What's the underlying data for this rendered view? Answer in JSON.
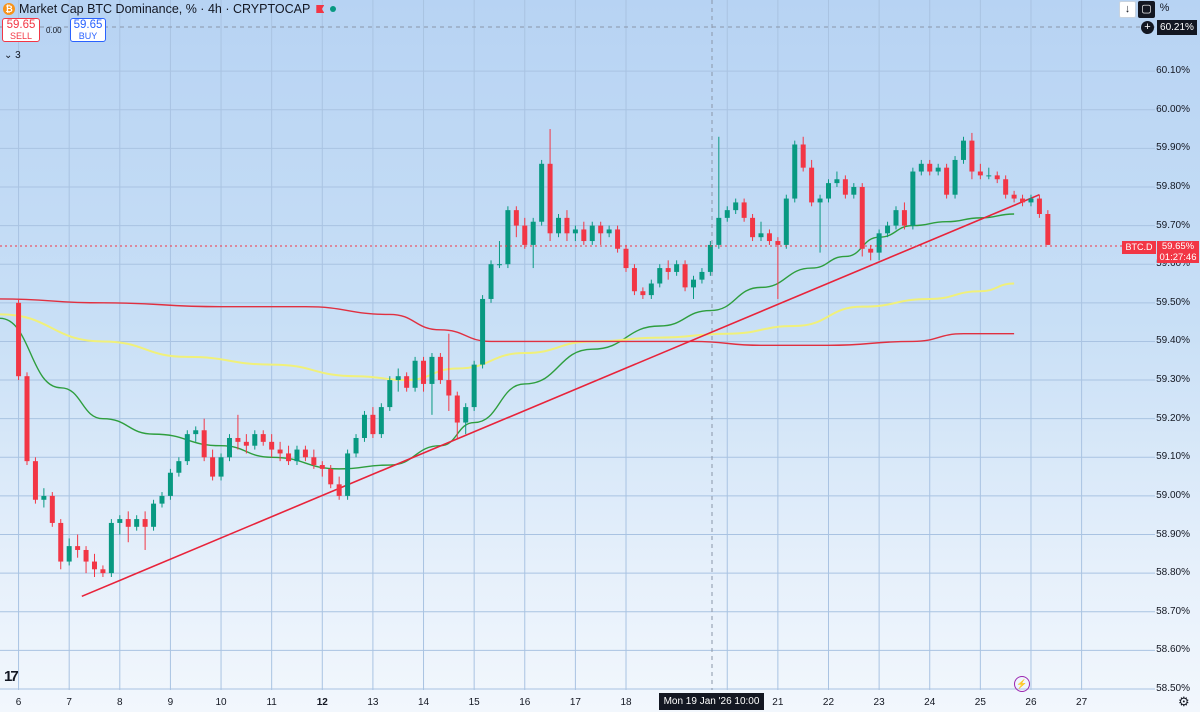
{
  "header": {
    "title": "Market Cap BTC Dominance, % · 4h · CRYPTOCAP",
    "sell_price": "59.65",
    "sell_label": "SELL",
    "buy_price": "59.65",
    "buy_label": "BUY",
    "spread": "0.00",
    "indicators_count": "3"
  },
  "toolbar": {
    "down_arrow": "↓",
    "square": "▢",
    "percent": "%"
  },
  "price_axis": {
    "labels": [
      "60.10%",
      "60.00%",
      "59.90%",
      "59.80%",
      "59.70%",
      "59.60%",
      "59.50%",
      "59.40%",
      "59.30%",
      "59.20%",
      "59.10%",
      "59.00%",
      "58.90%",
      "58.80%",
      "58.70%",
      "58.60%",
      "58.50%"
    ],
    "crosshair_price": "60.21%",
    "symbol_tag": "BTC.D",
    "current_price": "59.65%",
    "countdown": "01:27:46"
  },
  "time_axis": {
    "labels": [
      "6",
      "7",
      "8",
      "9",
      "10",
      "11",
      "12",
      "13",
      "14",
      "15",
      "16",
      "17",
      "18",
      "20",
      "21",
      "22",
      "23",
      "24",
      "25",
      "26",
      "27"
    ],
    "bold_labels": [
      "12"
    ],
    "crosshair_date": "Mon 19 Jan '26   10:00"
  },
  "colors": {
    "up": "#089981",
    "down": "#f23645",
    "ma_fast": "#2e9e3e",
    "ma_mid": "#f0f07a",
    "ma_slow": "#e03040",
    "trendline": "#e8233a"
  },
  "chart_data": {
    "type": "candlestick",
    "unit": "%",
    "ylim": [
      58.5,
      60.2
    ],
    "x_label_positions": {
      "6": 0,
      "7": 6,
      "8": 12,
      "9": 18,
      "10": 24,
      "11": 30,
      "12": 36,
      "13": 42,
      "14": 48,
      "15": 54,
      "16": 60,
      "17": 66,
      "18": 72,
      "20": 84,
      "21": 90,
      "22": 96,
      "23": 102,
      "24": 108,
      "25": 114,
      "26": 120,
      "27": 126
    },
    "x_range": [
      -2.2,
      134.7
    ],
    "candles": [
      {
        "o": 59.5,
        "h": 59.51,
        "l": 59.3,
        "c": 59.31
      },
      {
        "o": 59.31,
        "h": 59.32,
        "l": 59.08,
        "c": 59.09
      },
      {
        "o": 59.09,
        "h": 59.1,
        "l": 58.98,
        "c": 58.99
      },
      {
        "o": 58.99,
        "h": 59.02,
        "l": 58.97,
        "c": 59.0
      },
      {
        "o": 59.0,
        "h": 59.01,
        "l": 58.92,
        "c": 58.93
      },
      {
        "o": 58.93,
        "h": 58.94,
        "l": 58.81,
        "c": 58.83
      },
      {
        "o": 58.83,
        "h": 58.89,
        "l": 58.82,
        "c": 58.87
      },
      {
        "o": 58.87,
        "h": 58.9,
        "l": 58.84,
        "c": 58.86
      },
      {
        "o": 58.86,
        "h": 58.87,
        "l": 58.8,
        "c": 58.83
      },
      {
        "o": 58.83,
        "h": 58.85,
        "l": 58.79,
        "c": 58.81
      },
      {
        "o": 58.81,
        "h": 58.82,
        "l": 58.79,
        "c": 58.8
      },
      {
        "o": 58.8,
        "h": 58.94,
        "l": 58.79,
        "c": 58.93
      },
      {
        "o": 58.93,
        "h": 58.95,
        "l": 58.9,
        "c": 58.94
      },
      {
        "o": 58.94,
        "h": 58.96,
        "l": 58.88,
        "c": 58.92
      },
      {
        "o": 58.92,
        "h": 58.95,
        "l": 58.91,
        "c": 58.94
      },
      {
        "o": 58.94,
        "h": 58.96,
        "l": 58.86,
        "c": 58.92
      },
      {
        "o": 58.92,
        "h": 58.99,
        "l": 58.91,
        "c": 58.98
      },
      {
        "o": 58.98,
        "h": 59.01,
        "l": 58.97,
        "c": 59.0
      },
      {
        "o": 59.0,
        "h": 59.07,
        "l": 58.99,
        "c": 59.06
      },
      {
        "o": 59.06,
        "h": 59.1,
        "l": 59.05,
        "c": 59.09
      },
      {
        "o": 59.09,
        "h": 59.17,
        "l": 59.08,
        "c": 59.16
      },
      {
        "o": 59.16,
        "h": 59.18,
        "l": 59.14,
        "c": 59.17
      },
      {
        "o": 59.17,
        "h": 59.2,
        "l": 59.09,
        "c": 59.1
      },
      {
        "o": 59.1,
        "h": 59.12,
        "l": 59.04,
        "c": 59.05
      },
      {
        "o": 59.05,
        "h": 59.11,
        "l": 59.04,
        "c": 59.1
      },
      {
        "o": 59.1,
        "h": 59.16,
        "l": 59.09,
        "c": 59.15
      },
      {
        "o": 59.15,
        "h": 59.21,
        "l": 59.12,
        "c": 59.14
      },
      {
        "o": 59.14,
        "h": 59.16,
        "l": 59.11,
        "c": 59.13
      },
      {
        "o": 59.13,
        "h": 59.17,
        "l": 59.12,
        "c": 59.16
      },
      {
        "o": 59.16,
        "h": 59.17,
        "l": 59.13,
        "c": 59.14
      },
      {
        "o": 59.14,
        "h": 59.16,
        "l": 59.1,
        "c": 59.12
      },
      {
        "o": 59.12,
        "h": 59.14,
        "l": 59.09,
        "c": 59.11
      },
      {
        "o": 59.11,
        "h": 59.13,
        "l": 59.08,
        "c": 59.09
      },
      {
        "o": 59.09,
        "h": 59.13,
        "l": 59.08,
        "c": 59.12
      },
      {
        "o": 59.12,
        "h": 59.13,
        "l": 59.09,
        "c": 59.1
      },
      {
        "o": 59.1,
        "h": 59.12,
        "l": 59.07,
        "c": 59.08
      },
      {
        "o": 59.08,
        "h": 59.09,
        "l": 59.05,
        "c": 59.07
      },
      {
        "o": 59.07,
        "h": 59.08,
        "l": 59.02,
        "c": 59.03
      },
      {
        "o": 59.03,
        "h": 59.05,
        "l": 58.99,
        "c": 59.0
      },
      {
        "o": 59.0,
        "h": 59.12,
        "l": 58.99,
        "c": 59.11
      },
      {
        "o": 59.11,
        "h": 59.16,
        "l": 59.1,
        "c": 59.15
      },
      {
        "o": 59.15,
        "h": 59.22,
        "l": 59.14,
        "c": 59.21
      },
      {
        "o": 59.21,
        "h": 59.23,
        "l": 59.15,
        "c": 59.16
      },
      {
        "o": 59.16,
        "h": 59.24,
        "l": 59.15,
        "c": 59.23
      },
      {
        "o": 59.23,
        "h": 59.31,
        "l": 59.22,
        "c": 59.3
      },
      {
        "o": 59.3,
        "h": 59.33,
        "l": 59.27,
        "c": 59.31
      },
      {
        "o": 59.31,
        "h": 59.32,
        "l": 59.27,
        "c": 59.28
      },
      {
        "o": 59.28,
        "h": 59.36,
        "l": 59.27,
        "c": 59.35
      },
      {
        "o": 59.35,
        "h": 59.36,
        "l": 59.27,
        "c": 59.29
      },
      {
        "o": 59.29,
        "h": 59.37,
        "l": 59.21,
        "c": 59.36
      },
      {
        "o": 59.36,
        "h": 59.37,
        "l": 59.29,
        "c": 59.3
      },
      {
        "o": 59.3,
        "h": 59.42,
        "l": 59.22,
        "c": 59.26
      },
      {
        "o": 59.26,
        "h": 59.27,
        "l": 59.15,
        "c": 59.19
      },
      {
        "o": 59.19,
        "h": 59.24,
        "l": 59.16,
        "c": 59.23
      },
      {
        "o": 59.23,
        "h": 59.35,
        "l": 59.22,
        "c": 59.34
      },
      {
        "o": 59.34,
        "h": 59.52,
        "l": 59.33,
        "c": 59.51
      },
      {
        "o": 59.51,
        "h": 59.61,
        "l": 59.5,
        "c": 59.6
      },
      {
        "o": 59.6,
        "h": 59.66,
        "l": 59.59,
        "c": 59.6
      },
      {
        "o": 59.6,
        "h": 59.75,
        "l": 59.59,
        "c": 59.74
      },
      {
        "o": 59.74,
        "h": 59.75,
        "l": 59.67,
        "c": 59.7
      },
      {
        "o": 59.7,
        "h": 59.72,
        "l": 59.64,
        "c": 59.65
      },
      {
        "o": 59.65,
        "h": 59.72,
        "l": 59.59,
        "c": 59.71
      },
      {
        "o": 59.71,
        "h": 59.87,
        "l": 59.7,
        "c": 59.86
      },
      {
        "o": 59.86,
        "h": 59.95,
        "l": 59.66,
        "c": 59.68
      },
      {
        "o": 59.68,
        "h": 59.73,
        "l": 59.67,
        "c": 59.72
      },
      {
        "o": 59.72,
        "h": 59.74,
        "l": 59.66,
        "c": 59.68
      },
      {
        "o": 59.68,
        "h": 59.7,
        "l": 59.66,
        "c": 59.69
      },
      {
        "o": 59.69,
        "h": 59.71,
        "l": 59.65,
        "c": 59.66
      },
      {
        "o": 59.66,
        "h": 59.71,
        "l": 59.65,
        "c": 59.7
      },
      {
        "o": 59.7,
        "h": 59.71,
        "l": 59.65,
        "c": 59.68
      },
      {
        "o": 59.68,
        "h": 59.7,
        "l": 59.67,
        "c": 59.69
      },
      {
        "o": 59.69,
        "h": 59.7,
        "l": 59.63,
        "c": 59.64
      },
      {
        "o": 59.64,
        "h": 59.65,
        "l": 59.58,
        "c": 59.59
      },
      {
        "o": 59.59,
        "h": 59.6,
        "l": 59.52,
        "c": 59.53
      },
      {
        "o": 59.53,
        "h": 59.54,
        "l": 59.51,
        "c": 59.52
      },
      {
        "o": 59.52,
        "h": 59.56,
        "l": 59.51,
        "c": 59.55
      },
      {
        "o": 59.55,
        "h": 59.6,
        "l": 59.54,
        "c": 59.59
      },
      {
        "o": 59.59,
        "h": 59.61,
        "l": 59.56,
        "c": 59.58
      },
      {
        "o": 59.58,
        "h": 59.61,
        "l": 59.57,
        "c": 59.6
      },
      {
        "o": 59.6,
        "h": 59.61,
        "l": 59.53,
        "c": 59.54
      },
      {
        "o": 59.54,
        "h": 59.57,
        "l": 59.51,
        "c": 59.56
      },
      {
        "o": 59.56,
        "h": 59.59,
        "l": 59.55,
        "c": 59.58
      },
      {
        "o": 59.58,
        "h": 59.66,
        "l": 59.57,
        "c": 59.65
      },
      {
        "o": 59.65,
        "h": 59.93,
        "l": 59.64,
        "c": 59.72
      },
      {
        "o": 59.72,
        "h": 59.75,
        "l": 59.71,
        "c": 59.74
      },
      {
        "o": 59.74,
        "h": 59.77,
        "l": 59.73,
        "c": 59.76
      },
      {
        "o": 59.76,
        "h": 59.77,
        "l": 59.71,
        "c": 59.72
      },
      {
        "o": 59.72,
        "h": 59.73,
        "l": 59.66,
        "c": 59.67
      },
      {
        "o": 59.67,
        "h": 59.71,
        "l": 59.66,
        "c": 59.68
      },
      {
        "o": 59.68,
        "h": 59.69,
        "l": 59.65,
        "c": 59.66
      },
      {
        "o": 59.66,
        "h": 59.67,
        "l": 59.51,
        "c": 59.65
      },
      {
        "o": 59.65,
        "h": 59.78,
        "l": 59.64,
        "c": 59.77
      },
      {
        "o": 59.77,
        "h": 59.92,
        "l": 59.76,
        "c": 59.91
      },
      {
        "o": 59.91,
        "h": 59.93,
        "l": 59.84,
        "c": 59.85
      },
      {
        "o": 59.85,
        "h": 59.87,
        "l": 59.75,
        "c": 59.76
      },
      {
        "o": 59.76,
        "h": 59.78,
        "l": 59.63,
        "c": 59.77
      },
      {
        "o": 59.77,
        "h": 59.82,
        "l": 59.76,
        "c": 59.81
      },
      {
        "o": 59.81,
        "h": 59.84,
        "l": 59.8,
        "c": 59.82
      },
      {
        "o": 59.82,
        "h": 59.83,
        "l": 59.77,
        "c": 59.78
      },
      {
        "o": 59.78,
        "h": 59.81,
        "l": 59.77,
        "c": 59.8
      },
      {
        "o": 59.8,
        "h": 59.81,
        "l": 59.62,
        "c": 59.64
      },
      {
        "o": 59.64,
        "h": 59.65,
        "l": 59.61,
        "c": 59.63
      },
      {
        "o": 59.63,
        "h": 59.69,
        "l": 59.61,
        "c": 59.68
      },
      {
        "o": 59.68,
        "h": 59.71,
        "l": 59.67,
        "c": 59.7
      },
      {
        "o": 59.7,
        "h": 59.75,
        "l": 59.69,
        "c": 59.74
      },
      {
        "o": 59.74,
        "h": 59.76,
        "l": 59.69,
        "c": 59.7
      },
      {
        "o": 59.7,
        "h": 59.85,
        "l": 59.69,
        "c": 59.84
      },
      {
        "o": 59.84,
        "h": 59.87,
        "l": 59.83,
        "c": 59.86
      },
      {
        "o": 59.86,
        "h": 59.87,
        "l": 59.83,
        "c": 59.84
      },
      {
        "o": 59.84,
        "h": 59.86,
        "l": 59.83,
        "c": 59.85
      },
      {
        "o": 59.85,
        "h": 59.86,
        "l": 59.77,
        "c": 59.78
      },
      {
        "o": 59.78,
        "h": 59.88,
        "l": 59.77,
        "c": 59.87
      },
      {
        "o": 59.87,
        "h": 59.93,
        "l": 59.86,
        "c": 59.92
      },
      {
        "o": 59.92,
        "h": 59.94,
        "l": 59.82,
        "c": 59.84
      },
      {
        "o": 59.84,
        "h": 59.86,
        "l": 59.82,
        "c": 59.83
      },
      {
        "o": 59.83,
        "h": 59.85,
        "l": 59.82,
        "c": 59.83
      },
      {
        "o": 59.83,
        "h": 59.84,
        "l": 59.81,
        "c": 59.82
      },
      {
        "o": 59.82,
        "h": 59.83,
        "l": 59.77,
        "c": 59.78
      },
      {
        "o": 59.78,
        "h": 59.79,
        "l": 59.76,
        "c": 59.77
      },
      {
        "o": 59.77,
        "h": 59.78,
        "l": 59.75,
        "c": 59.76
      },
      {
        "o": 59.76,
        "h": 59.78,
        "l": 59.75,
        "c": 59.77
      },
      {
        "o": 59.77,
        "h": 59.78,
        "l": 59.72,
        "c": 59.73
      },
      {
        "o": 59.73,
        "h": 59.74,
        "l": 59.65,
        "c": 59.65
      }
    ],
    "moving_averages": [
      {
        "key": "ma_fast",
        "points": [
          [
            -2.2,
            59.46
          ],
          [
            5,
            59.28
          ],
          [
            10,
            59.2
          ],
          [
            16,
            59.16
          ],
          [
            24,
            59.13
          ],
          [
            30,
            59.1
          ],
          [
            38,
            59.07
          ],
          [
            44,
            59.08
          ],
          [
            50,
            59.13
          ],
          [
            54,
            59.19
          ],
          [
            60,
            59.29
          ],
          [
            68,
            59.38
          ],
          [
            76,
            59.44
          ],
          [
            82,
            59.48
          ],
          [
            88,
            59.54
          ],
          [
            94,
            59.59
          ],
          [
            98,
            59.62
          ],
          [
            102,
            59.67
          ],
          [
            106,
            59.7
          ],
          [
            110,
            59.71
          ],
          [
            114,
            59.72
          ],
          [
            118,
            59.73
          ]
        ]
      },
      {
        "key": "ma_mid",
        "points": [
          [
            -2.2,
            59.47
          ],
          [
            10,
            59.4
          ],
          [
            20,
            59.36
          ],
          [
            30,
            59.34
          ],
          [
            40,
            59.31
          ],
          [
            46,
            59.3
          ],
          [
            52,
            59.33
          ],
          [
            60,
            59.37
          ],
          [
            68,
            59.4
          ],
          [
            76,
            59.41
          ],
          [
            84,
            59.42
          ],
          [
            92,
            59.44
          ],
          [
            100,
            59.49
          ],
          [
            108,
            59.51
          ],
          [
            114,
            59.53
          ],
          [
            118,
            59.55
          ]
        ]
      },
      {
        "key": "ma_slow",
        "points": [
          [
            -2.2,
            59.51
          ],
          [
            10,
            59.5
          ],
          [
            24,
            59.49
          ],
          [
            34,
            59.49
          ],
          [
            44,
            59.47
          ],
          [
            50,
            59.43
          ],
          [
            56,
            59.4
          ],
          [
            70,
            59.4
          ],
          [
            80,
            59.4
          ],
          [
            88,
            59.39
          ],
          [
            96,
            59.39
          ],
          [
            106,
            59.4
          ],
          [
            112,
            59.42
          ],
          [
            118,
            59.42
          ]
        ]
      }
    ],
    "trendline": [
      [
        7.5,
        58.74
      ],
      [
        121,
        59.78
      ]
    ]
  }
}
